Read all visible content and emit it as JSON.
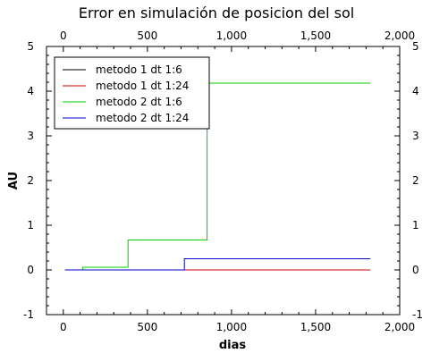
{
  "chart_data": {
    "type": "line",
    "title": "Error en simulación de posicion del sol",
    "xlabel": "dias",
    "ylabel": "AU",
    "xlim": [
      -100,
      2000
    ],
    "ylim": [
      -1,
      5
    ],
    "x_ticks": [
      0,
      500,
      1000,
      1500,
      2000
    ],
    "x_tick_labels": [
      "0",
      "500",
      "1,000",
      "1,500",
      "2,000"
    ],
    "y_ticks": [
      -1,
      0,
      1,
      2,
      3,
      4,
      5
    ],
    "y_tick_labels": [
      "-1",
      "0",
      "1",
      "2",
      "3",
      "4",
      "5"
    ],
    "grid": false,
    "legend_position": "top-left",
    "step": true,
    "series": [
      {
        "name": "metodo 1 dt 1:6",
        "color": "#000000",
        "x": [
          10,
          1825
        ],
        "y": [
          0,
          0
        ]
      },
      {
        "name": "metodo 1 dt 1:24",
        "color": "#cc0000",
        "x": [
          10,
          1825
        ],
        "y": [
          0,
          0
        ]
      },
      {
        "name": "metodo 2 dt 1:6",
        "color": "#00cc00",
        "x": [
          10,
          115,
          385,
          855,
          1825
        ],
        "y": [
          0,
          0.06,
          0.67,
          4.18,
          4.18
        ]
      },
      {
        "name": "metodo 2 dt 1:24",
        "color": "#0000cc",
        "x": [
          10,
          720,
          1825
        ],
        "y": [
          0,
          0.25,
          0.25
        ]
      }
    ]
  }
}
